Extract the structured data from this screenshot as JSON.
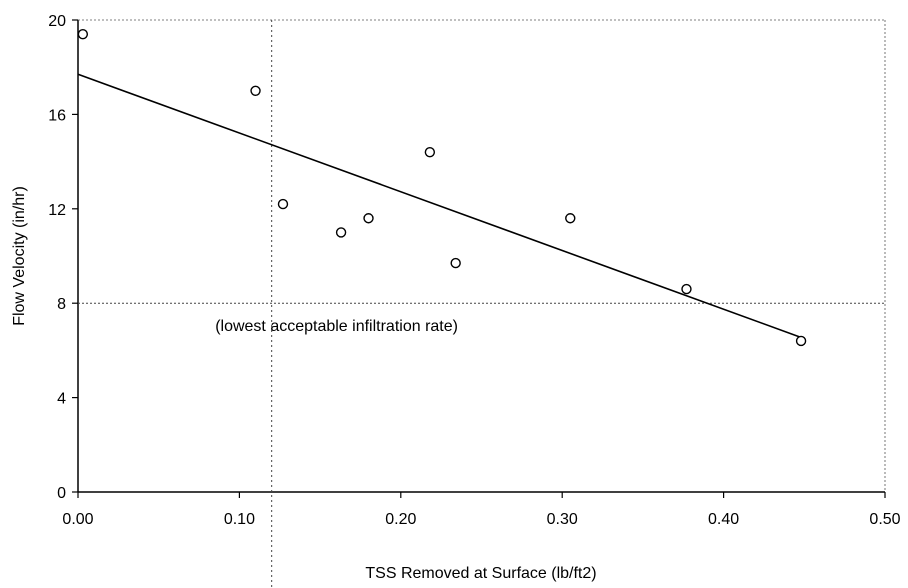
{
  "chart_data": {
    "type": "scatter",
    "title": "",
    "xlabel": "TSS Removed at Surface (lb/ft2)",
    "ylabel": "Flow Velocity (in/hr)",
    "xlim": [
      0,
      0.5
    ],
    "ylim": [
      0,
      20
    ],
    "xticks": [
      0,
      0.1,
      0.2,
      0.3,
      0.4,
      0.5
    ],
    "xtick_labels": [
      "0.00",
      "0.10",
      "0.20",
      "0.30",
      "0.40",
      "0.50"
    ],
    "yticks": [
      0,
      4,
      8,
      12,
      16,
      20
    ],
    "ytick_labels": [
      "0",
      "4",
      "8",
      "12",
      "16",
      "20"
    ],
    "grid": false,
    "series": [
      {
        "marker": "open-circle",
        "points": [
          [
            0.003,
            19.4
          ],
          [
            0.11,
            17.0
          ],
          [
            0.127,
            12.2
          ],
          [
            0.163,
            11.0
          ],
          [
            0.18,
            11.6
          ],
          [
            0.218,
            14.4
          ],
          [
            0.234,
            9.7
          ],
          [
            0.305,
            11.6
          ],
          [
            0.377,
            8.6
          ],
          [
            0.448,
            6.4
          ]
        ]
      }
    ],
    "trendline": {
      "x": [
        0,
        0.45
      ],
      "y": [
        17.7,
        6.5
      ]
    },
    "reference_lines": [
      {
        "orientation": "horizontal",
        "y": 8,
        "style": "dotted",
        "label": "(lowest acceptable infiltration rate)",
        "label_x": 0.085
      },
      {
        "orientation": "vertical",
        "x": 0.12,
        "style": "dotted"
      }
    ]
  }
}
